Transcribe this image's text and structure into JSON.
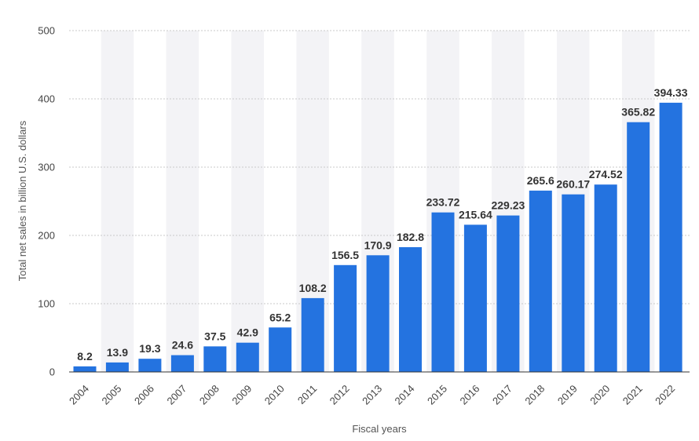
{
  "colors": {
    "bar": "#2473e0",
    "grid": "#c9c9c9",
    "band": "#f3f3f6",
    "text": "#444444"
  },
  "chart_data": {
    "type": "bar",
    "title": "",
    "xlabel": "Fiscal years",
    "ylabel": "Total net sales in billion U.S. dollars",
    "ylim": [
      0,
      500
    ],
    "yticks": [
      0,
      100,
      200,
      300,
      400,
      500
    ],
    "grid": true,
    "categories": [
      "2004",
      "2005",
      "2006",
      "2007",
      "2008",
      "2009",
      "2010",
      "2011",
      "2012",
      "2013",
      "2014",
      "2015",
      "2016",
      "2017",
      "2018",
      "2019",
      "2020",
      "2021",
      "2022"
    ],
    "values": [
      8.2,
      13.9,
      19.3,
      24.6,
      37.5,
      42.9,
      65.2,
      108.2,
      156.5,
      170.9,
      182.8,
      233.72,
      215.64,
      229.23,
      265.6,
      260.17,
      274.52,
      365.82,
      394.33
    ],
    "value_labels": [
      "8.2",
      "13.9",
      "19.3",
      "24.6",
      "37.5",
      "42.9",
      "65.2",
      "108.2",
      "156.5",
      "170.9",
      "182.8",
      "233.72",
      "215.64",
      "229.23",
      "265.6",
      "260.17",
      "274.52",
      "365.82",
      "394.33"
    ]
  }
}
